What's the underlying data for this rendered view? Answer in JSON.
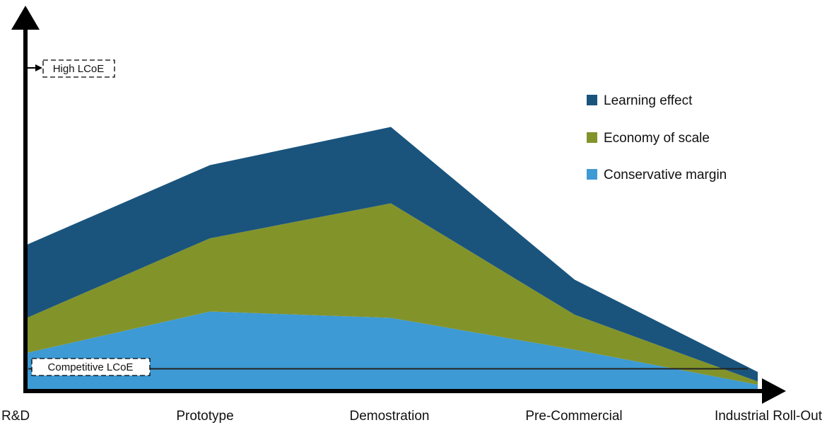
{
  "chart_data": {
    "type": "area",
    "stacked": true,
    "categories": [
      "R&D",
      "Prototype",
      "Demostration",
      "Pre-Commercial",
      "Industrial Roll-Out"
    ],
    "series": [
      {
        "name": "Conservative margin",
        "color": "#3d9ad4",
        "values": [
          12,
          25,
          23,
          13,
          2
        ]
      },
      {
        "name": "Economy of scale",
        "color": "#82932a",
        "values": [
          11,
          23,
          36,
          11,
          1
        ]
      },
      {
        "name": "Learning effect",
        "color": "#1a547d",
        "values": [
          23,
          23,
          24,
          11,
          3
        ]
      }
    ],
    "ylim": [
      0,
      100
    ],
    "legend": "top-right",
    "grid": false,
    "annotations": {
      "high_lcoe": {
        "label": "High LCoE",
        "value": 91
      },
      "competitive_lcoe": {
        "label": "Competitive LCoE",
        "value": 7
      }
    }
  },
  "colors": {
    "axis": "#000000",
    "reference_line": "#222222"
  }
}
